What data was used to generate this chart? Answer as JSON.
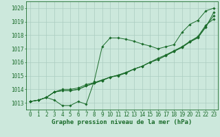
{
  "xlabel_label": "Graphe pression niveau de la mer (hPa)",
  "background_color": "#cce8dc",
  "grid_color": "#aaccc0",
  "line_color": "#1a6b2a",
  "xlim": [
    -0.5,
    23.5
  ],
  "ylim": [
    1012.5,
    1020.5
  ],
  "yticks": [
    1013,
    1014,
    1015,
    1016,
    1017,
    1018,
    1019,
    1020
  ],
  "xticks": [
    0,
    1,
    2,
    3,
    4,
    5,
    6,
    7,
    8,
    9,
    10,
    11,
    12,
    13,
    14,
    15,
    16,
    17,
    18,
    19,
    20,
    21,
    22,
    23
  ],
  "series1_x": [
    0,
    1,
    2,
    3,
    4,
    5,
    6,
    7,
    8,
    9,
    10,
    11,
    12,
    13,
    14,
    15,
    16,
    17,
    18,
    19,
    20,
    21,
    22,
    23
  ],
  "series1_y": [
    1013.1,
    1013.2,
    1013.4,
    1013.2,
    1012.8,
    1012.8,
    1013.1,
    1012.9,
    1014.6,
    1017.15,
    1017.8,
    1017.8,
    1017.7,
    1017.55,
    1017.35,
    1017.2,
    1017.0,
    1017.15,
    1017.3,
    1018.2,
    1018.8,
    1019.1,
    1019.8,
    1020.0
  ],
  "series2_x": [
    0,
    1,
    2,
    3,
    4,
    5,
    6,
    7,
    8,
    9,
    10,
    11,
    12,
    13,
    14,
    15,
    16,
    17,
    18,
    19,
    20,
    21,
    22,
    23
  ],
  "series2_y": [
    1013.1,
    1013.2,
    1013.4,
    1013.8,
    1014.0,
    1014.0,
    1014.1,
    1014.35,
    1014.5,
    1014.7,
    1014.9,
    1015.0,
    1015.2,
    1015.5,
    1015.7,
    1016.0,
    1016.3,
    1016.55,
    1016.85,
    1017.15,
    1017.55,
    1017.9,
    1018.75,
    1019.2
  ],
  "series3_x": [
    0,
    1,
    2,
    3,
    4,
    5,
    6,
    7,
    8,
    9,
    10,
    11,
    12,
    13,
    14,
    15,
    16,
    17,
    18,
    19,
    20,
    21,
    22,
    23
  ],
  "series3_y": [
    1013.1,
    1013.2,
    1013.4,
    1013.8,
    1013.9,
    1013.9,
    1014.0,
    1014.25,
    1014.45,
    1014.65,
    1014.9,
    1015.05,
    1015.25,
    1015.5,
    1015.7,
    1016.0,
    1016.2,
    1016.5,
    1016.8,
    1017.1,
    1017.5,
    1017.85,
    1018.65,
    1019.45
  ],
  "series4_x": [
    0,
    1,
    2,
    3,
    4,
    5,
    6,
    7,
    8,
    9,
    10,
    11,
    12,
    13,
    14,
    15,
    16,
    17,
    18,
    19,
    20,
    21,
    22,
    23
  ],
  "series4_y": [
    1013.1,
    1013.2,
    1013.4,
    1013.8,
    1013.9,
    1013.9,
    1014.0,
    1014.25,
    1014.45,
    1014.65,
    1014.9,
    1015.05,
    1015.25,
    1015.5,
    1015.7,
    1016.0,
    1016.2,
    1016.5,
    1016.8,
    1017.1,
    1017.5,
    1017.8,
    1018.6,
    1019.7
  ],
  "font_size_ticks": 5.5,
  "font_size_xlabel": 6.5,
  "marker_size": 1.8,
  "linewidth": 0.7
}
